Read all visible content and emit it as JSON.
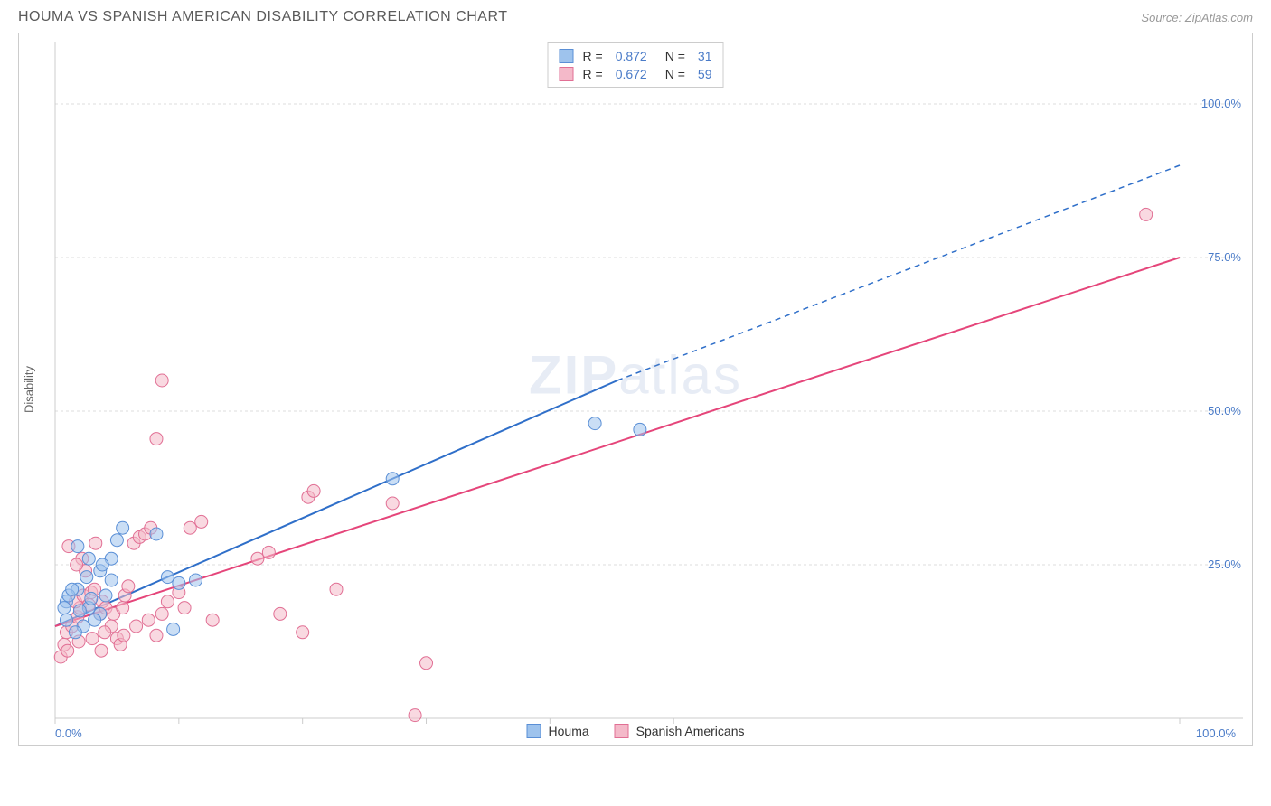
{
  "header": {
    "title": "HOUMA VS SPANISH AMERICAN DISABILITY CORRELATION CHART",
    "source_label": "Source:",
    "source_name": "ZipAtlas.com"
  },
  "chart": {
    "type": "scatter",
    "xlim": [
      0,
      100
    ],
    "ylim": [
      0,
      110
    ],
    "y_gridlines": [
      25,
      50,
      75,
      100
    ],
    "x_ticks": [
      0,
      11,
      22,
      33,
      44,
      55,
      100
    ],
    "x_tick_labels": {
      "0": "0.0%",
      "100": "100.0%"
    },
    "y_tick_labels": {
      "25": "25.0%",
      "50": "50.0%",
      "75": "75.0%",
      "100": "100.0%"
    },
    "y_axis_title": "Disability",
    "background_color": "#ffffff",
    "grid_color": "#dddddd",
    "border_color": "#cccccc",
    "series": {
      "houma": {
        "label": "Houma",
        "color_fill": "#9ec3ed",
        "color_stroke": "#5a8fd6",
        "marker_radius": 7,
        "fill_opacity": 0.55,
        "R": "0.872",
        "N": "31",
        "trend": {
          "x1": 0,
          "y1": 15,
          "x2": 50,
          "y2": 55,
          "x_solid_end": 50,
          "x_dash_end": 100,
          "y_dash_end": 90,
          "color": "#2f6fc9",
          "width": 2
        },
        "points": [
          [
            2,
            28
          ],
          [
            3,
            26
          ],
          [
            4,
            24
          ],
          [
            1,
            19
          ],
          [
            2,
            21
          ],
          [
            3,
            18
          ],
          [
            4,
            17
          ],
          [
            5,
            22.5
          ],
          [
            4.5,
            20
          ],
          [
            3.5,
            16
          ],
          [
            2.5,
            15
          ],
          [
            1.8,
            14
          ],
          [
            1,
            16
          ],
          [
            0.8,
            18
          ],
          [
            1.2,
            20
          ],
          [
            5,
            26
          ],
          [
            5.5,
            29
          ],
          [
            6,
            31
          ],
          [
            9,
            30
          ],
          [
            10,
            23
          ],
          [
            11,
            22
          ],
          [
            12.5,
            22.5
          ],
          [
            10.5,
            14.5
          ],
          [
            30,
            39
          ],
          [
            48,
            48
          ],
          [
            52,
            47
          ],
          [
            2.2,
            17.5
          ],
          [
            3.2,
            19.5
          ],
          [
            1.5,
            21
          ],
          [
            2.8,
            23
          ],
          [
            4.2,
            25
          ]
        ]
      },
      "spanish": {
        "label": "Spanish Americans",
        "color_fill": "#f4b9c9",
        "color_stroke": "#e16f94",
        "marker_radius": 7,
        "fill_opacity": 0.55,
        "R": "0.672",
        "N": "59",
        "trend": {
          "x1": 0,
          "y1": 15,
          "x2": 100,
          "y2": 75,
          "color": "#e5457a",
          "width": 2
        },
        "points": [
          [
            0.8,
            12
          ],
          [
            1,
            14
          ],
          [
            1.5,
            15
          ],
          [
            2,
            16.5
          ],
          [
            2.2,
            18
          ],
          [
            1.8,
            19
          ],
          [
            2.5,
            20
          ],
          [
            3,
            18.5
          ],
          [
            3.2,
            20.5
          ],
          [
            3.5,
            21
          ],
          [
            4,
            17
          ],
          [
            4.2,
            19
          ],
          [
            4.5,
            18
          ],
          [
            5,
            15
          ],
          [
            5.2,
            17
          ],
          [
            5.5,
            13
          ],
          [
            6,
            18
          ],
          [
            6.2,
            20
          ],
          [
            6.5,
            21.5
          ],
          [
            7,
            28.5
          ],
          [
            7.5,
            29.5
          ],
          [
            8,
            30
          ],
          [
            8.5,
            31
          ],
          [
            9,
            13.5
          ],
          [
            9.5,
            17
          ],
          [
            10,
            19
          ],
          [
            11,
            20.5
          ],
          [
            11.5,
            18
          ],
          [
            12,
            31
          ],
          [
            13,
            32
          ],
          [
            14,
            16
          ],
          [
            18,
            26
          ],
          [
            19,
            27
          ],
          [
            20,
            17
          ],
          [
            22,
            14
          ],
          [
            22.5,
            36
          ],
          [
            23,
            37
          ],
          [
            9,
            45.5
          ],
          [
            9.5,
            55
          ],
          [
            25,
            21
          ],
          [
            30,
            35
          ],
          [
            32,
            0.5
          ],
          [
            33,
            9
          ],
          [
            1.2,
            28
          ],
          [
            2.4,
            26
          ],
          [
            3.6,
            28.5
          ],
          [
            4.1,
            11
          ],
          [
            5.8,
            12
          ],
          [
            6.1,
            13.5
          ],
          [
            7.2,
            15
          ],
          [
            8.3,
            16
          ],
          [
            0.5,
            10
          ],
          [
            1.1,
            11
          ],
          [
            2.1,
            12.5
          ],
          [
            3.3,
            13
          ],
          [
            4.4,
            14
          ],
          [
            97,
            82
          ],
          [
            2.7,
            24
          ],
          [
            1.9,
            25
          ]
        ]
      }
    },
    "legend_top": {
      "R_label": "R =",
      "N_label": "N ="
    },
    "watermark": "ZIPatlas"
  }
}
